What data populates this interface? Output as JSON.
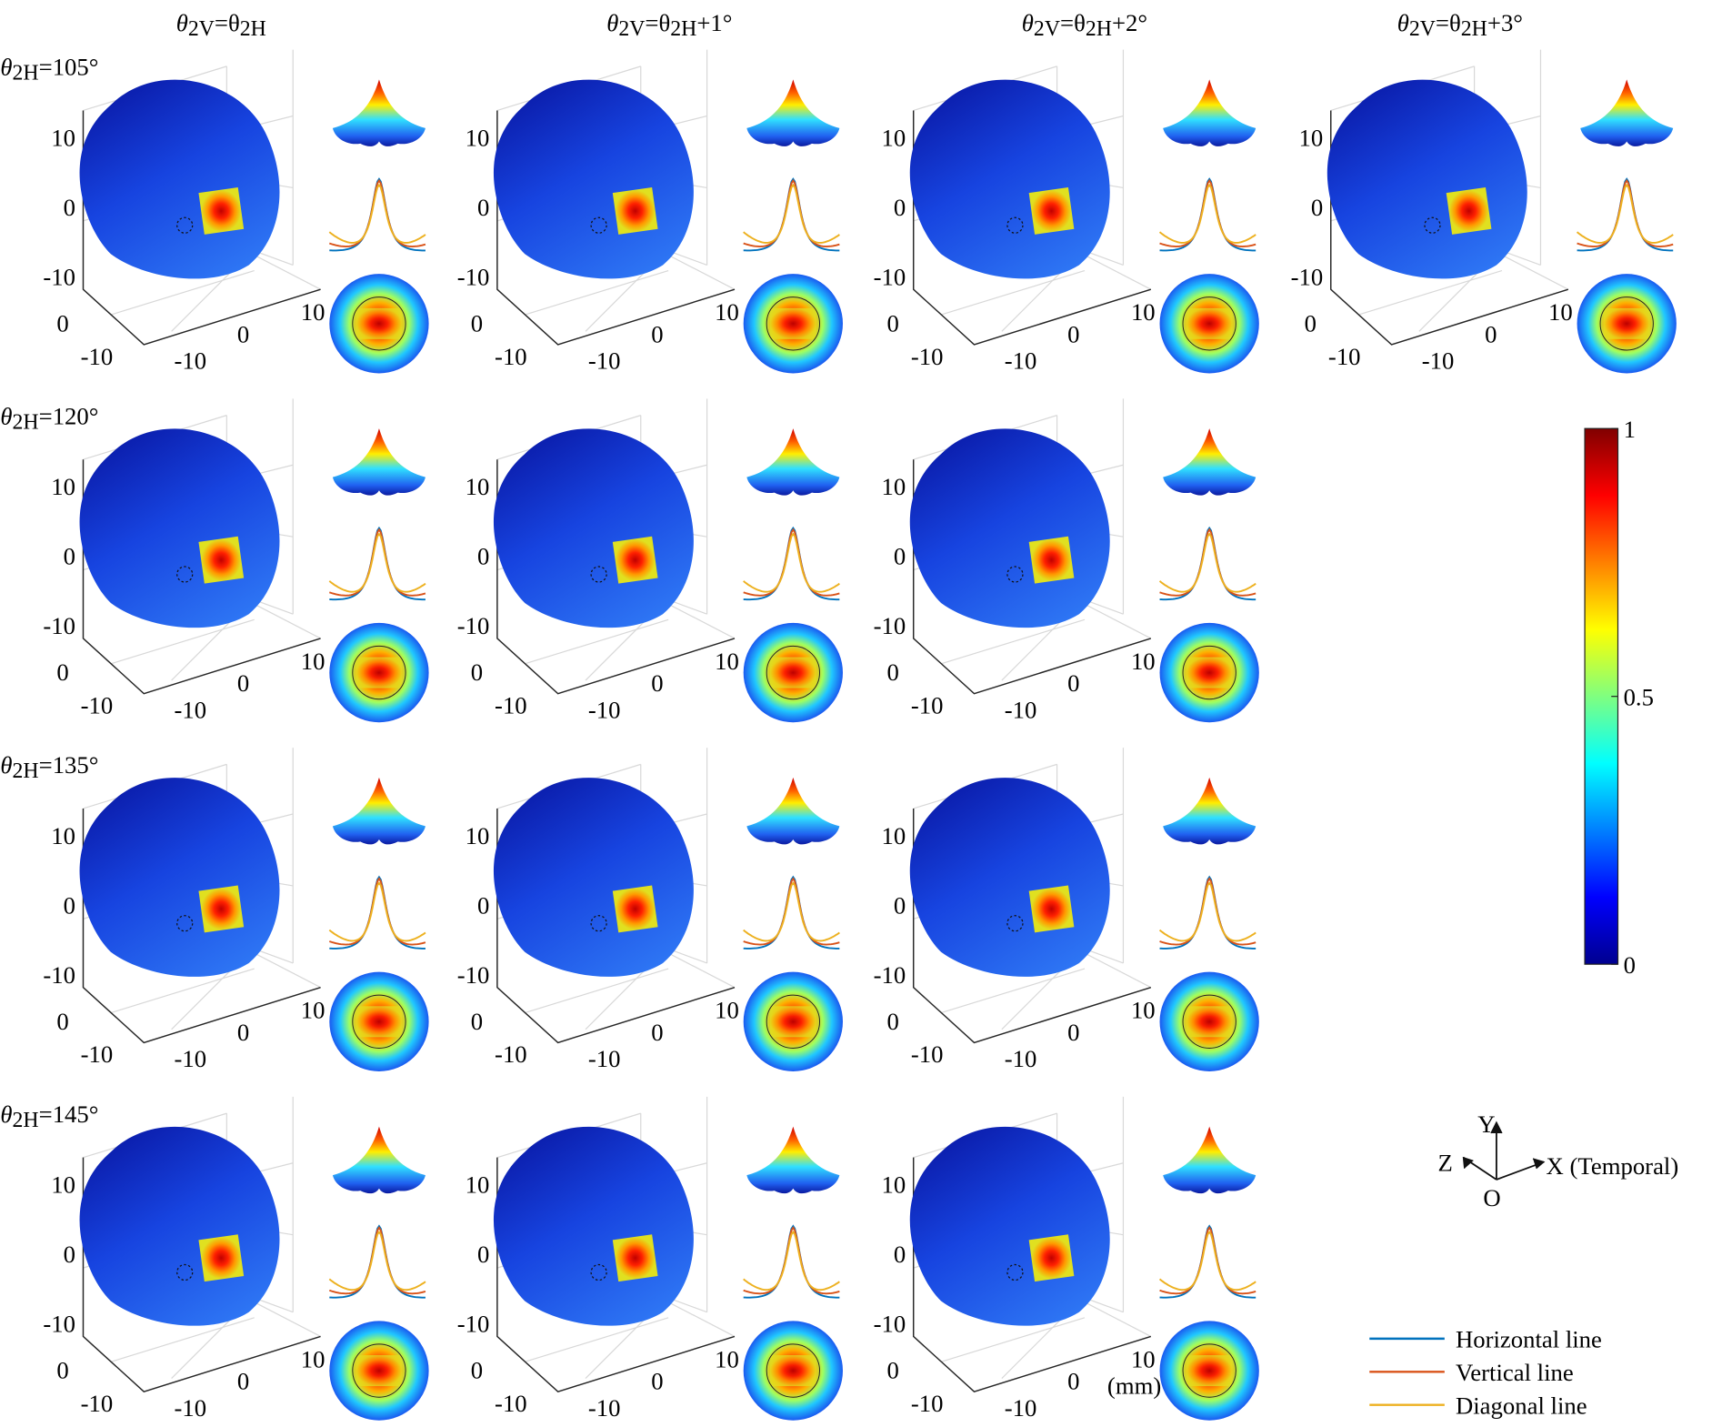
{
  "column_headers": [
    [
      "θ",
      "2V",
      "=θ",
      "2H"
    ],
    [
      "θ",
      "2V",
      "=θ",
      "2H",
      "+1°"
    ],
    [
      "θ",
      "2V",
      "=θ",
      "2H",
      "+2°"
    ],
    [
      "θ",
      "2V",
      "=θ",
      "2H",
      "+3°"
    ]
  ],
  "row_labels": [
    [
      "θ",
      "2H",
      "=105°"
    ],
    [
      "θ",
      "2H",
      "=120°"
    ],
    [
      "θ",
      "2H",
      "=135°"
    ],
    [
      "θ",
      "2H",
      "=145°"
    ]
  ],
  "axis_ticks": {
    "vertical": [
      "10",
      "0",
      "-10"
    ],
    "depth": [
      "0",
      "-10"
    ],
    "horizontal": [
      "-10",
      "0",
      "10"
    ]
  },
  "unit": "(mm)",
  "colorbar": {
    "lim": [
      0,
      1
    ],
    "ticks": [
      0,
      0.5,
      1
    ]
  },
  "axes_indicator": {
    "y": "Y",
    "z": "Z",
    "x": "X (Temporal)",
    "origin": "O"
  },
  "legend": [
    {
      "name": "Horizontal line",
      "color": "#0072bd"
    },
    {
      "name": "Vertical line",
      "color": "#d95319"
    },
    {
      "name": "Diagonal line",
      "color": "#edb120"
    }
  ]
}
